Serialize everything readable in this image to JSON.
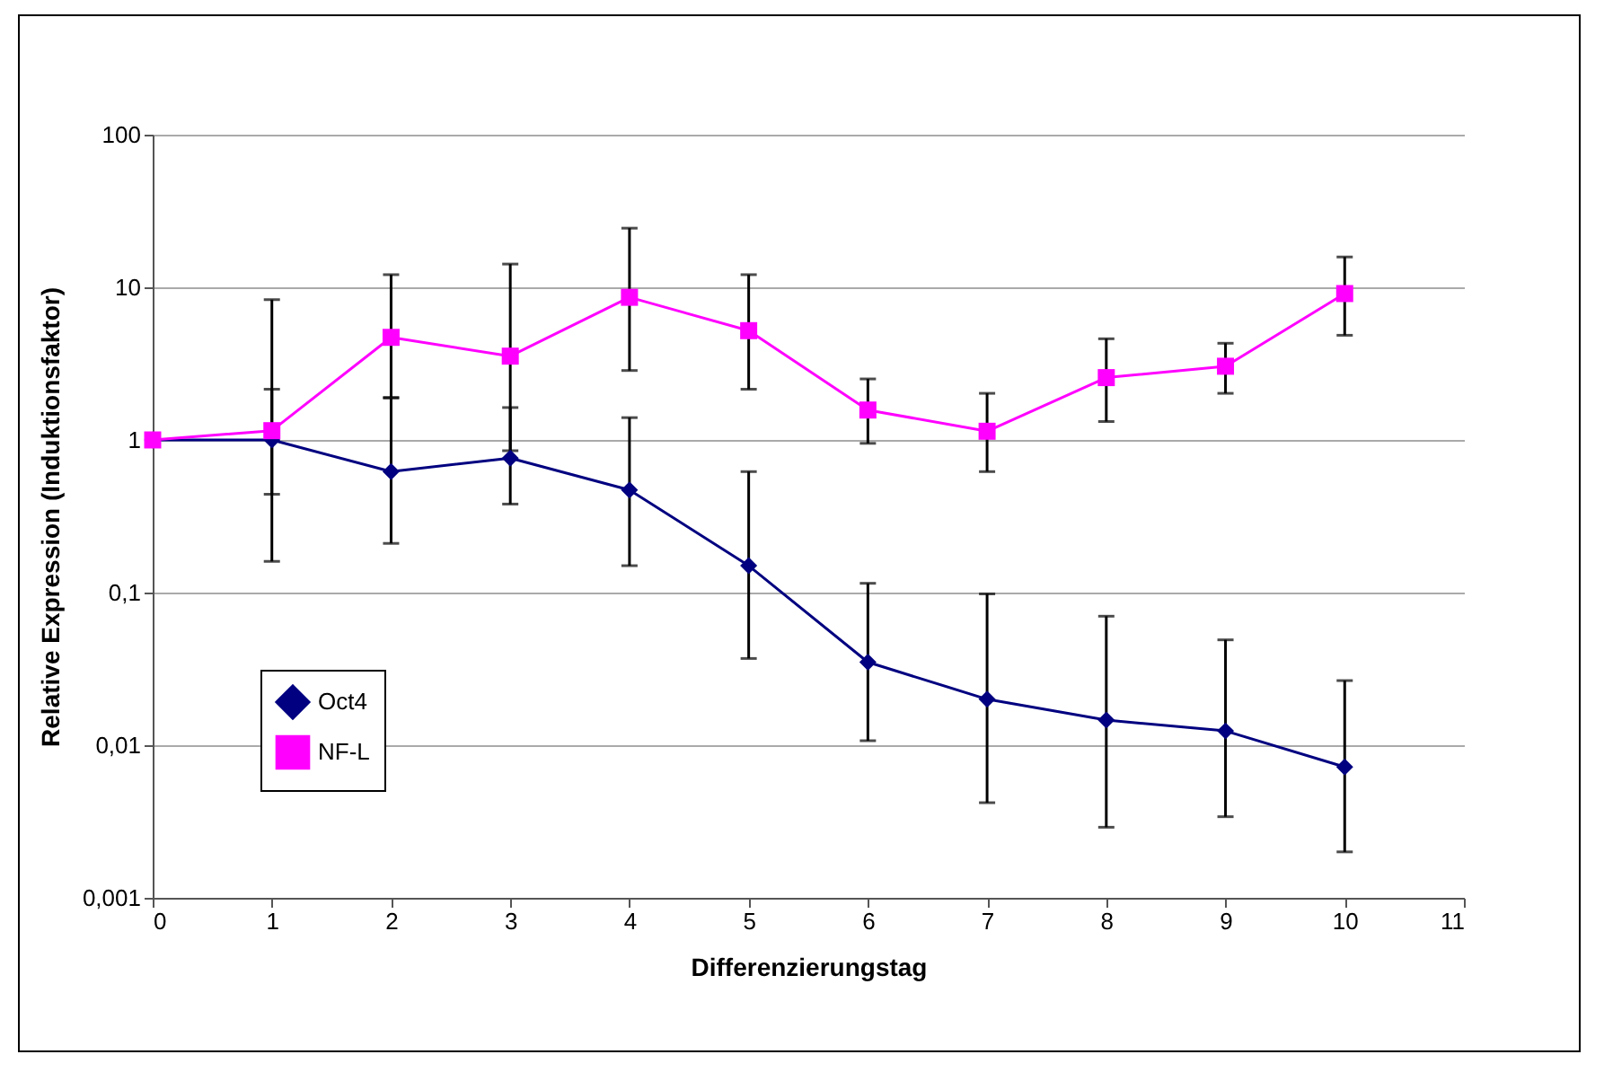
{
  "chart_data": {
    "type": "line",
    "xlabel": "Differenzierungstag",
    "ylabel": "Relative Expression (Induktionsfaktor)",
    "x": [
      0,
      1,
      2,
      3,
      4,
      5,
      6,
      7,
      8,
      9,
      10
    ],
    "series": [
      {
        "name": "Oct4",
        "color": "#000080",
        "marker": "diamond",
        "values": [
          1,
          1,
          0.62,
          0.76,
          0.47,
          0.15,
          0.035,
          0.02,
          0.0146,
          0.0124,
          0.0072
        ],
        "errors": [
          null,
          [
            0.16,
            2.15
          ],
          [
            0.21,
            1.88
          ],
          [
            0.38,
            1.63
          ],
          [
            0.15,
            1.4
          ],
          [
            0.037,
            0.62
          ],
          [
            0.0107,
            0.115
          ],
          [
            0.0042,
            0.098
          ],
          [
            0.0029,
            0.07
          ],
          [
            0.0034,
            0.049
          ],
          [
            0.002,
            0.0265
          ]
        ]
      },
      {
        "name": "NF-L",
        "color": "#ff00ff",
        "marker": "square",
        "values": [
          1,
          1.15,
          4.7,
          3.54,
          8.6,
          5.2,
          1.57,
          1.14,
          2.56,
          3.04,
          9.1
        ],
        "errors": [
          null,
          [
            0.44,
            8.3
          ],
          [
            1.9,
            12.1
          ],
          [
            0.85,
            14.2
          ],
          [
            2.85,
            24.4
          ],
          [
            2.15,
            12.1
          ],
          [
            0.95,
            2.51
          ],
          [
            0.62,
            2.02
          ],
          [
            1.32,
            4.6
          ],
          [
            2.02,
            4.3
          ],
          [
            4.85,
            15.8
          ]
        ]
      }
    ],
    "log": "y",
    "xlim": [
      0,
      11
    ],
    "xticks": [
      0,
      1,
      2,
      3,
      4,
      5,
      6,
      7,
      8,
      9,
      10,
      11
    ],
    "ylim": [
      0.001,
      100
    ],
    "yticks": [
      {
        "value": 0.001,
        "label": "0,001"
      },
      {
        "value": 0.01,
        "label": "0,01"
      },
      {
        "value": 0.1,
        "label": "0,1"
      },
      1,
      10,
      100
    ],
    "grid": "y",
    "legend": "bottom left"
  }
}
